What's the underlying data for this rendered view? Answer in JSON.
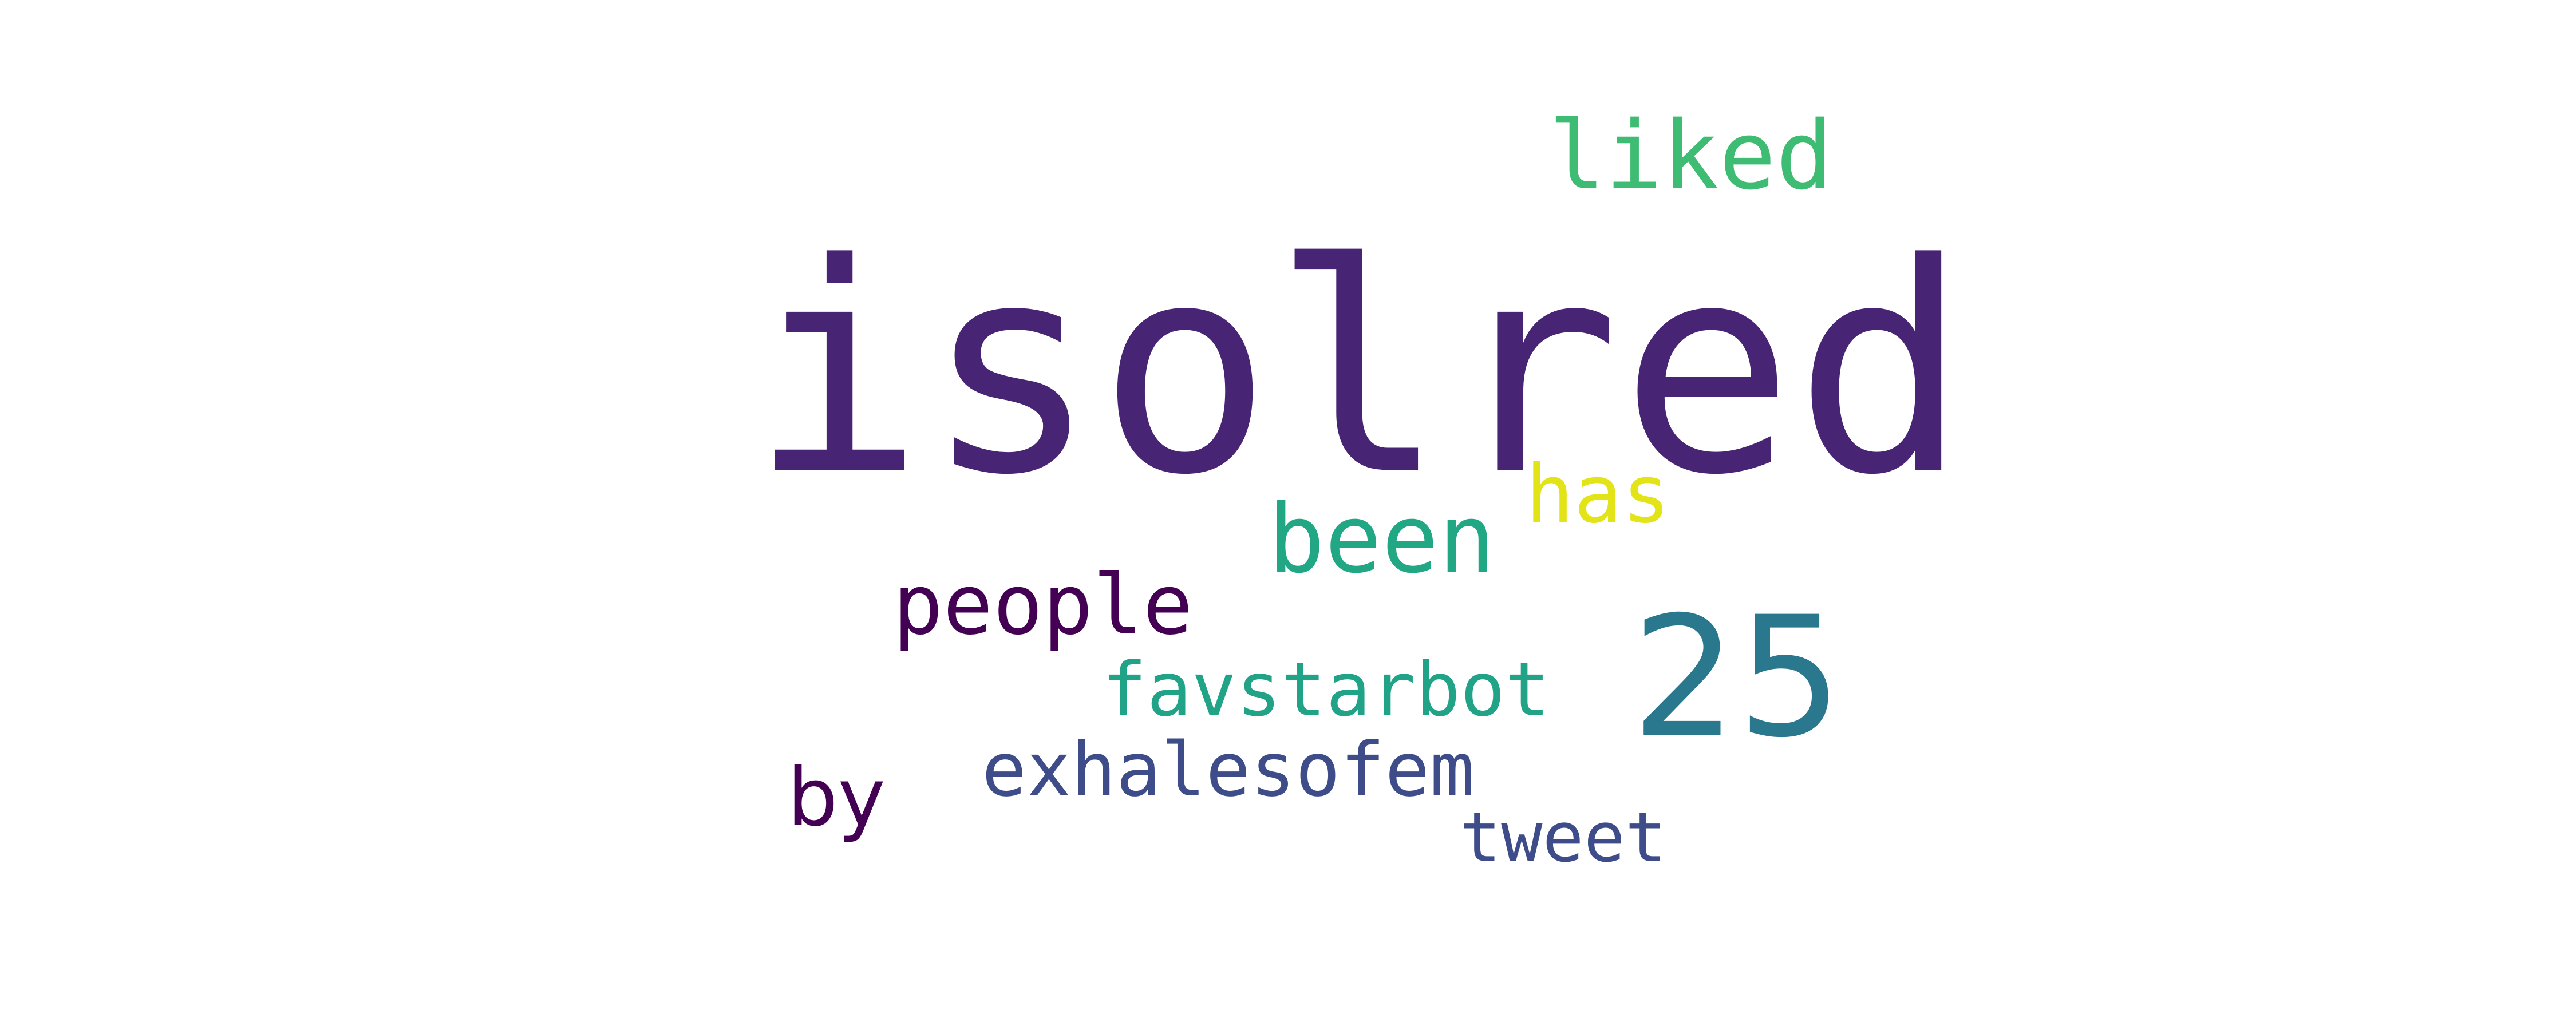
{
  "word_cloud": {
    "background_color": "#ffffff",
    "words": {
      "isolred": {
        "text": "isolred",
        "color": "#482475"
      },
      "liked": {
        "text": "liked",
        "color": "#3fbc73"
      },
      "n25": {
        "text": "25",
        "color": "#2a788e"
      },
      "been": {
        "text": "been",
        "color": "#22a785"
      },
      "has": {
        "text": "has",
        "color": "#e2e418"
      },
      "people": {
        "text": "people",
        "color": "#440154"
      },
      "favstarbot": {
        "text": "favstarbot",
        "color": "#20a386"
      },
      "exhalesofem": {
        "text": "exhalesofem",
        "color": "#3e4c8a"
      },
      "by": {
        "text": "by",
        "color": "#440154"
      },
      "tweet": {
        "text": "tweet",
        "color": "#3e4c8a"
      }
    }
  }
}
